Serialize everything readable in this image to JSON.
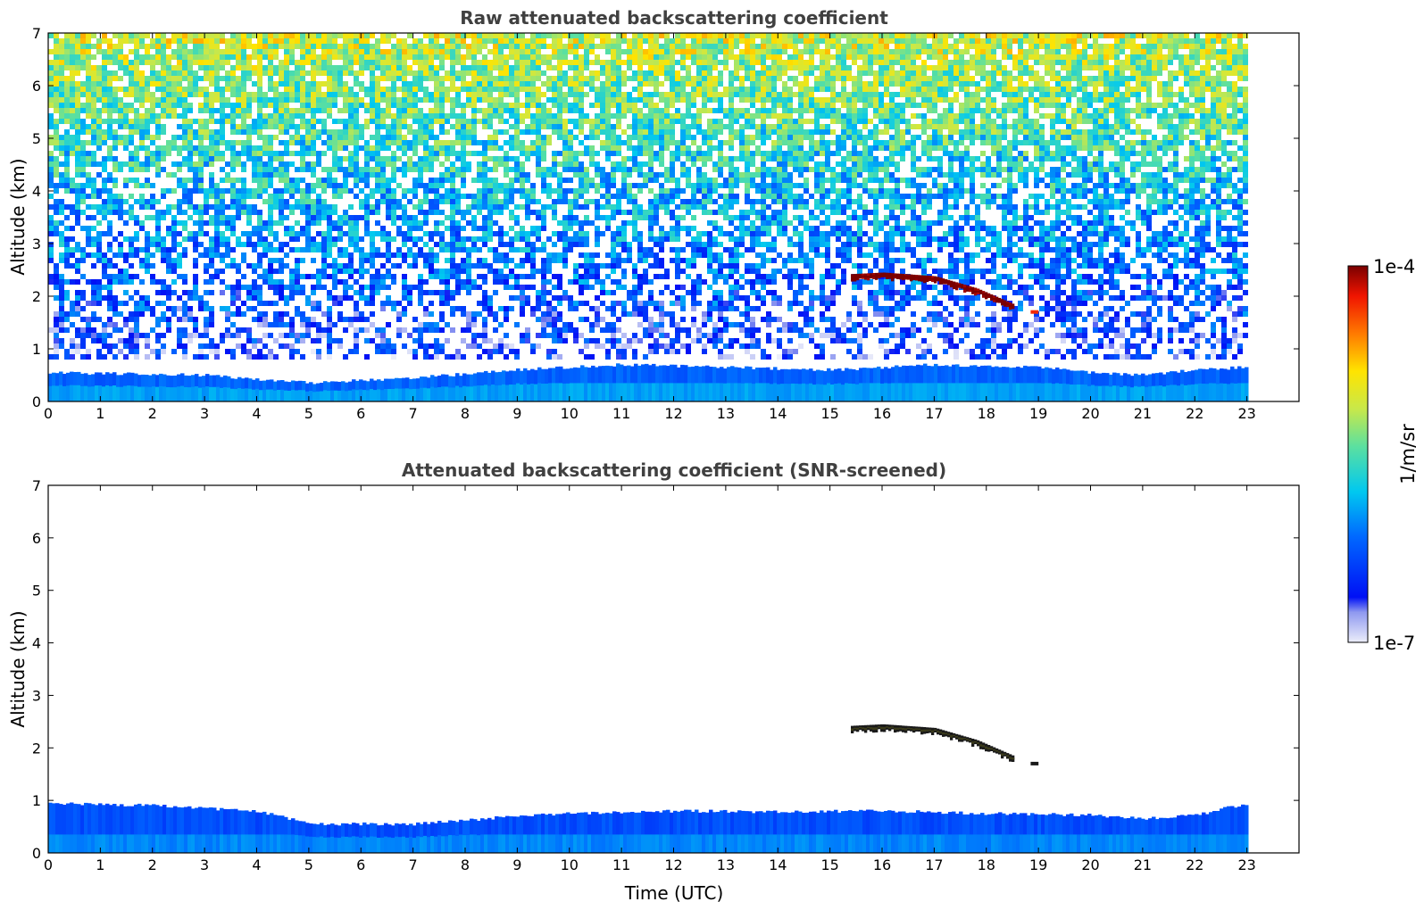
{
  "chart_data": [
    {
      "type": "heatmap",
      "title": "Raw attenuated backscattering coefficient",
      "xlabel": "",
      "ylabel": "Altitude (km)",
      "xlim": [
        0,
        24
      ],
      "ylim": [
        0,
        7
      ],
      "data_extent_x": [
        0,
        23
      ],
      "x_ticks": [
        "0",
        "1",
        "2",
        "3",
        "4",
        "5",
        "6",
        "7",
        "8",
        "9",
        "10",
        "11",
        "12",
        "13",
        "14",
        "15",
        "16",
        "17",
        "18",
        "19",
        "20",
        "21",
        "22",
        "23"
      ],
      "y_ticks": [
        "0",
        "1",
        "2",
        "3",
        "4",
        "5",
        "6",
        "7"
      ],
      "features": [
        {
          "kind": "noise",
          "note_free": true,
          "altitude_km": [
            0.8,
            7.0
          ],
          "log10_level_bottom": -6.6,
          "log10_level_top": -5.1
        },
        {
          "kind": "boundary_layer",
          "top_km_at_hour": [
            [
              0,
              0.55
            ],
            [
              3,
              0.5
            ],
            [
              5,
              0.35
            ],
            [
              7,
              0.45
            ],
            [
              9,
              0.6
            ],
            [
              11,
              0.7
            ],
            [
              13,
              0.65
            ],
            [
              15,
              0.6
            ],
            [
              17,
              0.7
            ],
            [
              19,
              0.65
            ],
            [
              20,
              0.55
            ],
            [
              21,
              0.5
            ],
            [
              22,
              0.6
            ],
            [
              23,
              0.65
            ]
          ],
          "log10_level": -6.2
        },
        {
          "kind": "cloud_layer",
          "hours": [
            15.4,
            18.5
          ],
          "top_km_at_hour": [
            [
              15.4,
              2.42
            ],
            [
              16,
              2.45
            ],
            [
              17,
              2.38
            ],
            [
              17.8,
              2.15
            ],
            [
              18.5,
              1.85
            ]
          ],
          "thickness_km": 0.12,
          "log10_level": -4.1
        },
        {
          "kind": "cloud_fragment",
          "hours": [
            18.85,
            19.0
          ],
          "altitude_km": 1.7,
          "log10_level": -4.3
        }
      ]
    },
    {
      "type": "heatmap",
      "title": "Attenuated backscattering coefficient (SNR-screened)",
      "xlabel": "Time (UTC)",
      "ylabel": "Altitude (km)",
      "xlim": [
        0,
        24
      ],
      "ylim": [
        0,
        7
      ],
      "data_extent_x": [
        0,
        23
      ],
      "x_ticks": [
        "0",
        "1",
        "2",
        "3",
        "4",
        "5",
        "6",
        "7",
        "8",
        "9",
        "10",
        "11",
        "12",
        "13",
        "14",
        "15",
        "16",
        "17",
        "18",
        "19",
        "20",
        "21",
        "22",
        "23"
      ],
      "y_ticks": [
        "0",
        "1",
        "2",
        "3",
        "4",
        "5",
        "6",
        "7"
      ],
      "features": [
        {
          "kind": "boundary_layer",
          "top_km_at_hour": [
            [
              0,
              0.95
            ],
            [
              2,
              0.9
            ],
            [
              4,
              0.8
            ],
            [
              5,
              0.55
            ],
            [
              7,
              0.55
            ],
            [
              9,
              0.7
            ],
            [
              10,
              0.75
            ],
            [
              12,
              0.8
            ],
            [
              14,
              0.78
            ],
            [
              16,
              0.8
            ],
            [
              18,
              0.75
            ],
            [
              20,
              0.72
            ],
            [
              21,
              0.65
            ],
            [
              22,
              0.72
            ],
            [
              23,
              0.95
            ]
          ],
          "log10_level": -6.3
        },
        {
          "kind": "cloud_layer",
          "hours": [
            15.4,
            18.5
          ],
          "top_km_at_hour": [
            [
              15.4,
              2.42
            ],
            [
              16,
              2.45
            ],
            [
              17,
              2.38
            ],
            [
              17.8,
              2.15
            ],
            [
              18.5,
              1.85
            ]
          ],
          "thickness_km": 0.12,
          "log10_level": -4.2
        },
        {
          "kind": "cloud_fragment",
          "hours": [
            18.85,
            19.0
          ],
          "altitude_km": 1.7,
          "log10_level": -4.3
        }
      ]
    }
  ],
  "colorbar": {
    "max_label": "1e-4",
    "min_label": "1e-7",
    "unit_label": "1/m/sr",
    "log10_range": [
      -7,
      -4
    ],
    "colormap": "jet-like with white-to-blue low end"
  }
}
